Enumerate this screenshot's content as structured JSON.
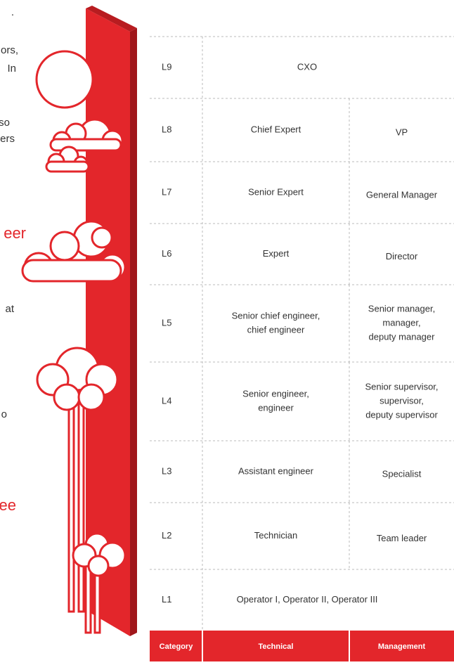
{
  "side_text": [
    {
      "text": "."
    },
    {
      "text": "ors,"
    },
    {
      "text": "In"
    },
    {
      "text": "so"
    },
    {
      "text": "ers"
    },
    {
      "text": "eer"
    },
    {
      "text": "at"
    },
    {
      "text": "o"
    },
    {
      "text": "ee"
    }
  ],
  "table": {
    "rows": [
      {
        "level": "L9",
        "span": [
          "CXO"
        ]
      },
      {
        "level": "L8",
        "technical": [
          "Chief Expert"
        ],
        "management": [
          "VP"
        ]
      },
      {
        "level": "L7",
        "technical": [
          "Senior Expert"
        ],
        "management": [
          "General Manager"
        ]
      },
      {
        "level": "L6",
        "technical": [
          "Expert"
        ],
        "management": [
          "Director"
        ]
      },
      {
        "level": "L5",
        "technical": [
          "Senior chief engineer,",
          "chief engineer"
        ],
        "management": [
          "Senior manager,",
          "manager,",
          "deputy manager"
        ]
      },
      {
        "level": "L4",
        "technical": [
          "Senior engineer,",
          "engineer"
        ],
        "management": [
          "Senior supervisor,",
          "supervisor,",
          "deputy supervisor"
        ]
      },
      {
        "level": "L3",
        "technical": [
          "Assistant engineer"
        ],
        "management": [
          "Specialist"
        ]
      },
      {
        "level": "L2",
        "technical": [
          "Technician"
        ],
        "management": [
          "Team leader"
        ]
      },
      {
        "level": "L1",
        "span": [
          "Operator I, Operator II, Operator III"
        ]
      }
    ],
    "header": [
      "Category",
      "Technical",
      "Management"
    ]
  }
}
